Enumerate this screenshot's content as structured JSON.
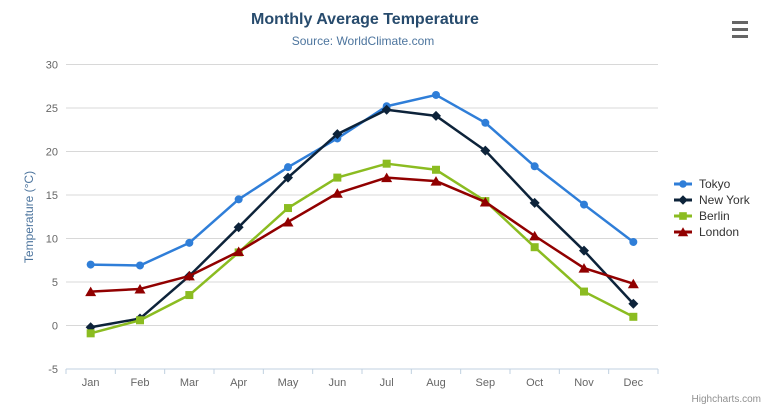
{
  "credits": "Highcharts.com",
  "export_menu": {
    "icon": "hamburger-icon"
  },
  "theme": {
    "title_color": "#274b6d",
    "subtitle_color": "#4d759e",
    "axis_title_color": "#4d759e",
    "legend_text_color": "#333333",
    "credits_color": "#909090",
    "burger_color": "#666666",
    "background": "#ffffff"
  },
  "chart_data": {
    "type": "line",
    "title": "Monthly Average Temperature",
    "subtitle": "Source: WorldClimate.com",
    "categories": [
      "Jan",
      "Feb",
      "Mar",
      "Apr",
      "May",
      "Jun",
      "Jul",
      "Aug",
      "Sep",
      "Oct",
      "Nov",
      "Dec"
    ],
    "xlabel": "",
    "ylabel": "Temperature (°C)",
    "ylim": [
      -5,
      30
    ],
    "ytick_step": 5,
    "grid": true,
    "grid_color": "#d8d8d8",
    "axis_color": "#c0d0e0",
    "label_color": "#666666",
    "legend_position": "right",
    "series": [
      {
        "name": "Tokyo",
        "color": "#2f7ed8",
        "marker": "circle",
        "values": [
          7.0,
          6.9,
          9.5,
          14.5,
          18.2,
          21.5,
          25.2,
          26.5,
          23.3,
          18.3,
          13.9,
          9.6
        ]
      },
      {
        "name": "New York",
        "color": "#0d233a",
        "marker": "diamond",
        "values": [
          -0.2,
          0.8,
          5.7,
          11.3,
          17.0,
          22.0,
          24.8,
          24.1,
          20.1,
          14.1,
          8.6,
          2.5
        ]
      },
      {
        "name": "Berlin",
        "color": "#8bbc21",
        "marker": "square",
        "values": [
          -0.9,
          0.6,
          3.5,
          8.4,
          13.5,
          17.0,
          18.6,
          17.9,
          14.3,
          9.0,
          3.9,
          1.0
        ]
      },
      {
        "name": "London",
        "color": "#910000",
        "marker": "triangle",
        "values": [
          3.9,
          4.2,
          5.7,
          8.5,
          11.9,
          15.2,
          17.0,
          16.6,
          14.2,
          10.3,
          6.6,
          4.8
        ]
      }
    ]
  }
}
